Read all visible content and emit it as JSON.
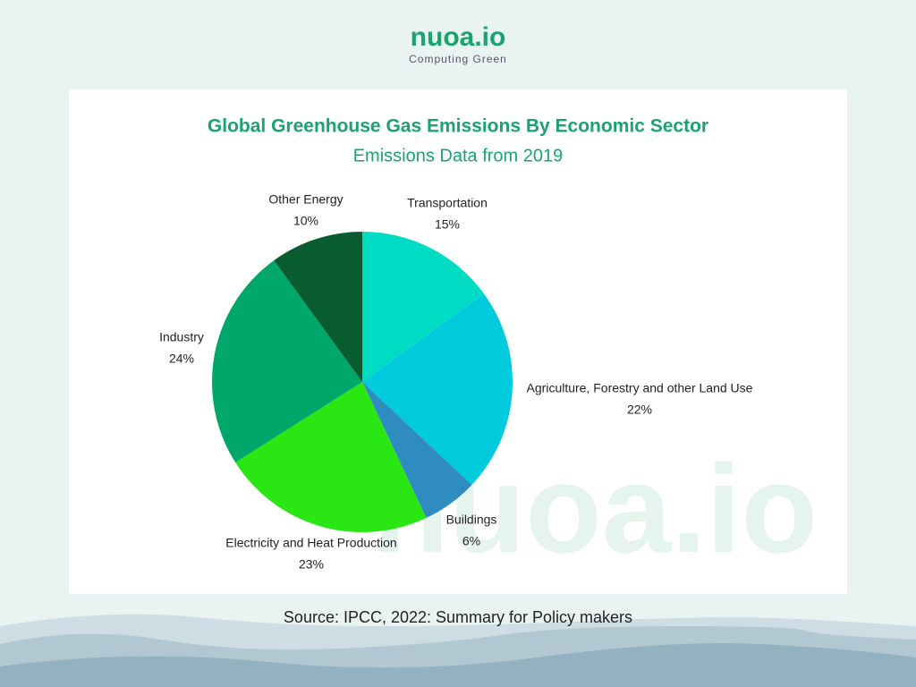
{
  "header": {
    "logo": "nuoa.io",
    "tagline": "Computing  Green"
  },
  "chart_data": {
    "type": "pie",
    "title": "Global Greenhouse Gas Emissions By Economic Sector",
    "subtitle": "Emissions Data from 2019",
    "categories": [
      "Transportation",
      "Agriculture, Forestry and other Land Use",
      "Buildings",
      "Electricity and Heat Production",
      "Industry",
      "Other Energy"
    ],
    "values": [
      15,
      22,
      6,
      23,
      24,
      10
    ],
    "value_labels": [
      "15%",
      "22%",
      "6%",
      "23%",
      "24%",
      "10%"
    ],
    "colors": [
      "#00dcc3",
      "#00cbdc",
      "#2e8cbf",
      "#2ae613",
      "#00a76b",
      "#085c30"
    ]
  },
  "watermark": "nuoa.io",
  "source": "Source: IPCC, 2022: Summary for Policy makers"
}
